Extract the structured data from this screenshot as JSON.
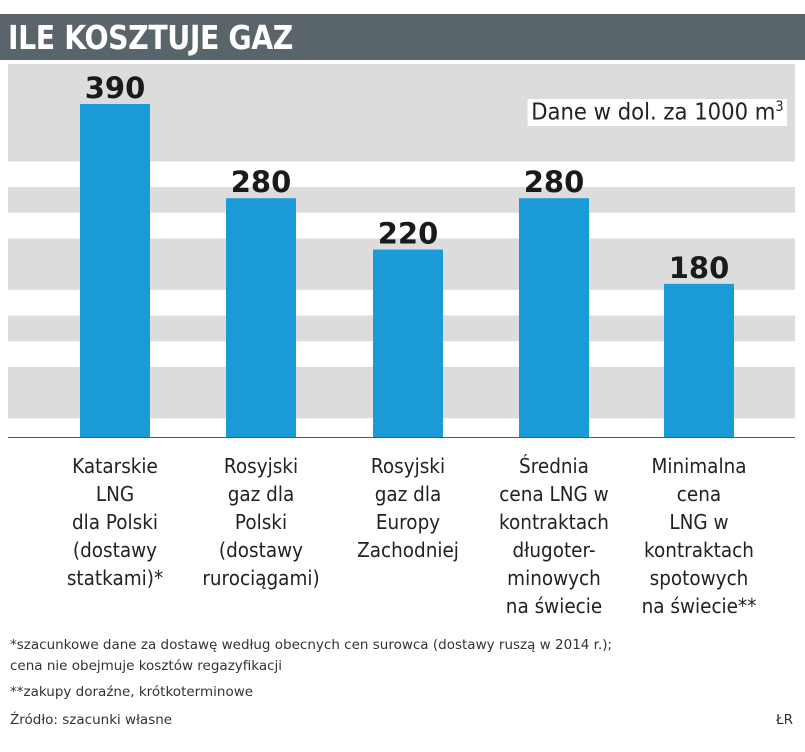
{
  "header": {
    "title": "ILE KOSZTUJE GAZ"
  },
  "unit": {
    "text": "Dane w dol. za 1000 m",
    "superscript": "3"
  },
  "colors": {
    "bar": "#1a9ad6",
    "band": "#dcdcdc",
    "header_bg": "#59646b"
  },
  "chart_data": {
    "type": "bar",
    "title": "ILE KOSZTUJE GAZ",
    "categories": [
      "Katarskie\nLNG\ndla Polski\n(dostawy\nstatkami)*",
      "Rosyjski\ngaz dla\nPolski\n(dostawy\nrurociągami)",
      "Rosyjski\ngaz dla\nEuropy\nZachodniej",
      "Średnia\ncena LNG w\nkontraktach\ndługoter-\nminowych\nna świecie",
      "Minimalna\ncena\nLNG w\nkontraktach\nspotowych\nna świecie**"
    ],
    "values": [
      390,
      280,
      220,
      280,
      180
    ],
    "value_labels": [
      "390",
      "280",
      "220",
      "280",
      "180"
    ],
    "ylim": [
      0,
      400
    ],
    "grid": "alternating horizontal bands",
    "xlabel": "",
    "ylabel": ""
  },
  "footnotes": {
    "line1": "*szacunkowe dane za dostawę według obecnych cen surowca  (dostawy ruszą w 2014 r.);",
    "line2": "cena nie obejmuje kosztów regazyfikacji",
    "line3": "**zakupy doraźne, krótkoterminowe",
    "source": "Źródło: szacunki własne",
    "author": "ŁR"
  }
}
